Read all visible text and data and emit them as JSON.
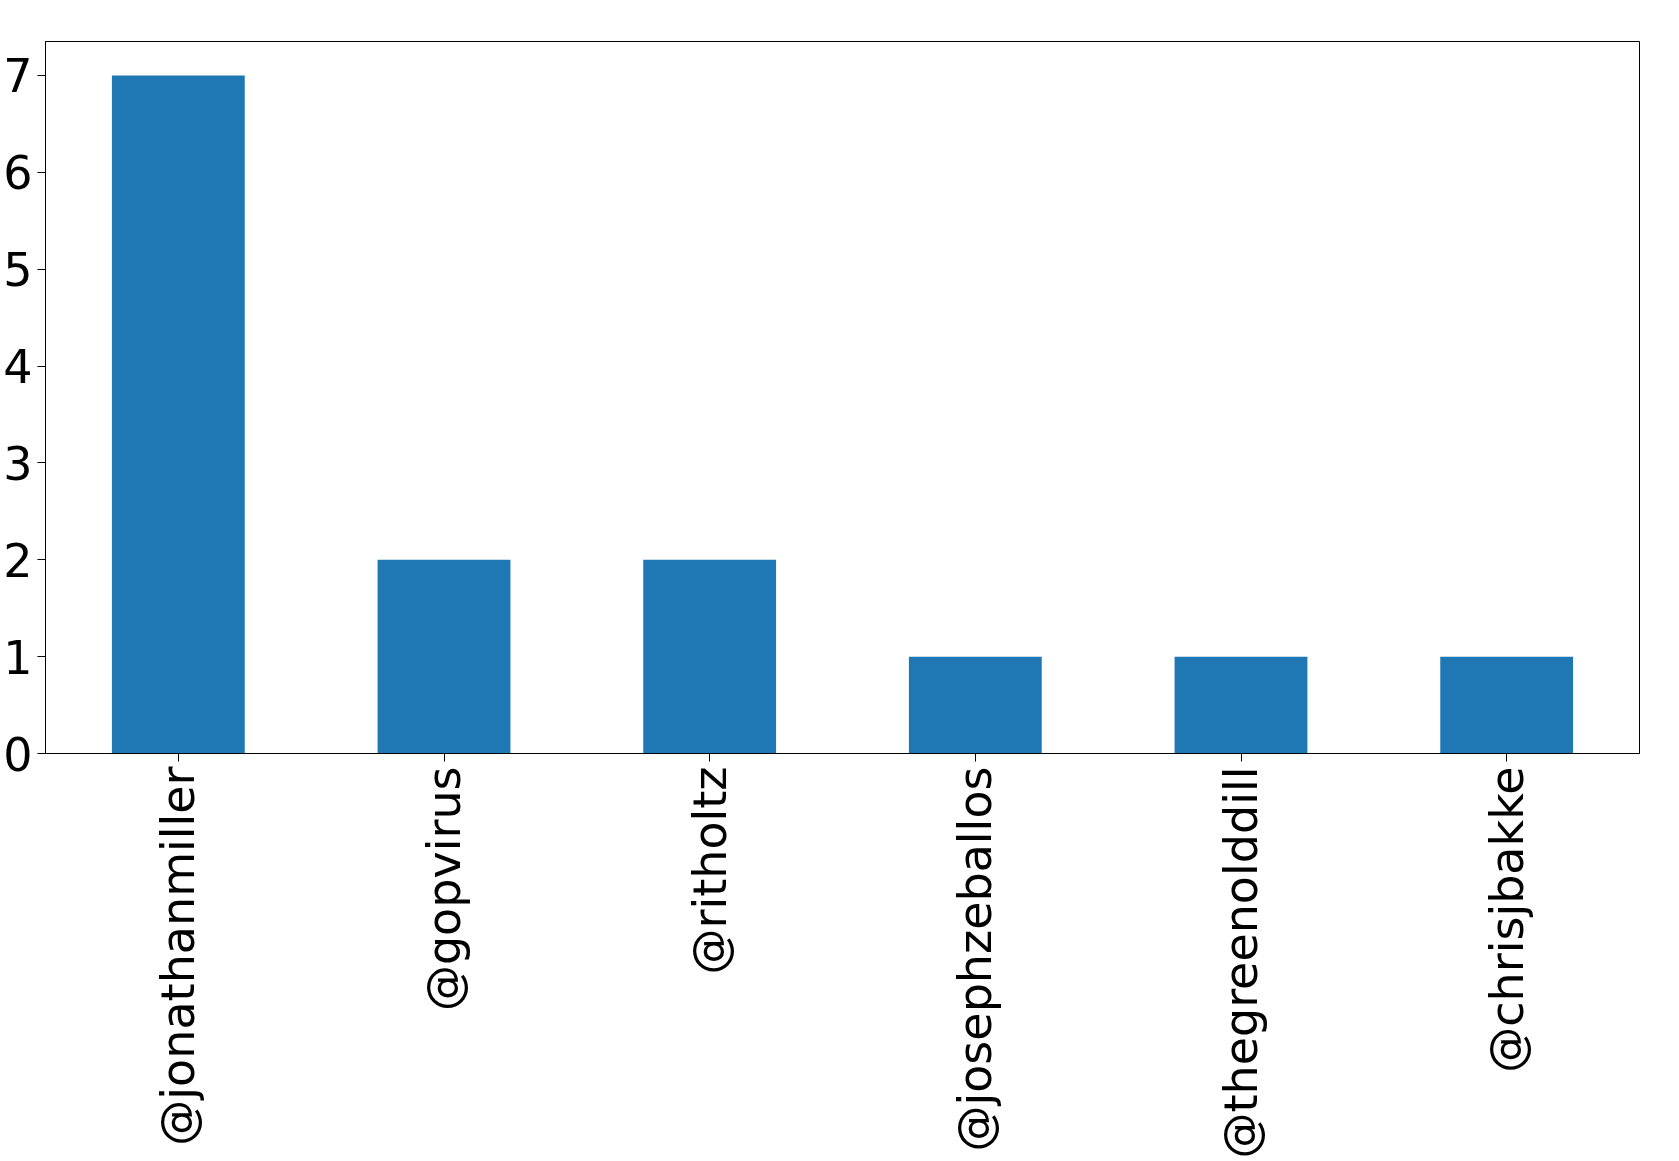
{
  "chart_data": {
    "type": "bar",
    "categories": [
      "@jonathanmiller",
      "@gopvirus",
      "@ritholtz",
      "@josephzeballos",
      "@thegreenolddill",
      "@chrisjbakke"
    ],
    "values": [
      7,
      2,
      2,
      1,
      1,
      1
    ],
    "color": "#1f77b4",
    "ylim": [
      0,
      7.35
    ],
    "yticks": [
      0,
      1,
      2,
      3,
      4,
      5,
      6,
      7
    ],
    "grid": false
  }
}
